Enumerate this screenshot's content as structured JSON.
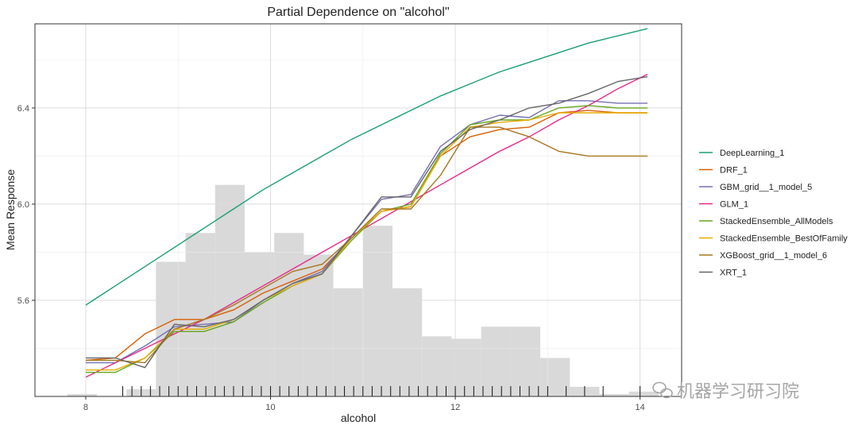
{
  "chart_data": {
    "type": "line",
    "title": "Partial Dependence on \"alcohol\"",
    "xlabel": "alcohol",
    "ylabel": "Mean Response",
    "xlim": [
      7.45,
      14.45
    ],
    "ylim": [
      5.2,
      6.75
    ],
    "x_ticks": [
      8,
      10,
      12,
      14
    ],
    "y_ticks": [
      5.6,
      6.0,
      6.4
    ],
    "x_tick_labels": [
      "8",
      "10",
      "12",
      "14"
    ],
    "y_tick_labels": [
      "5.6",
      "6.0",
      "6.4"
    ],
    "grid": true,
    "legend_position": "right",
    "x": [
      8.0,
      8.32,
      8.64,
      8.96,
      9.28,
      9.6,
      9.92,
      10.24,
      10.56,
      10.88,
      11.2,
      11.52,
      11.84,
      12.16,
      12.48,
      12.8,
      13.12,
      13.44,
      13.76,
      14.08
    ],
    "series": [
      {
        "name": "DeepLearning_1",
        "color": "#1b9e77",
        "values": [
          5.58,
          5.66,
          5.74,
          5.82,
          5.9,
          5.98,
          6.06,
          6.13,
          6.2,
          6.27,
          6.33,
          6.39,
          6.45,
          6.5,
          6.55,
          6.59,
          6.63,
          6.67,
          6.7,
          6.73
        ]
      },
      {
        "name": "DRF_1",
        "color": "#d95f02",
        "values": [
          5.35,
          5.36,
          5.46,
          5.52,
          5.52,
          5.56,
          5.63,
          5.68,
          5.73,
          5.86,
          5.97,
          5.99,
          6.2,
          6.28,
          6.31,
          6.32,
          6.38,
          6.39,
          6.38,
          6.38
        ]
      },
      {
        "name": "GBM_grid__1_model_5",
        "color": "#7570b3",
        "values": [
          5.34,
          5.34,
          5.41,
          5.49,
          5.5,
          5.51,
          5.6,
          5.67,
          5.72,
          5.87,
          6.02,
          6.04,
          6.24,
          6.33,
          6.37,
          6.36,
          6.43,
          6.43,
          6.42,
          6.42
        ]
      },
      {
        "name": "GLM_1",
        "color": "#e7298a",
        "values": [
          5.28,
          5.34,
          5.4,
          5.46,
          5.52,
          5.59,
          5.66,
          5.73,
          5.8,
          5.87,
          5.94,
          6.01,
          6.08,
          6.15,
          6.22,
          6.28,
          6.35,
          6.41,
          6.48,
          6.54
        ]
      },
      {
        "name": "StackedEnsemble_AllModels",
        "color": "#66a61e",
        "values": [
          5.3,
          5.3,
          5.36,
          5.47,
          5.47,
          5.51,
          5.59,
          5.66,
          5.71,
          5.85,
          5.97,
          6.0,
          6.21,
          6.33,
          6.35,
          6.35,
          6.4,
          6.41,
          6.4,
          6.4
        ]
      },
      {
        "name": "StackedEnsemble_BestOfFamily",
        "color": "#e6ab02",
        "values": [
          5.31,
          5.31,
          5.36,
          5.48,
          5.48,
          5.52,
          5.6,
          5.66,
          5.71,
          5.86,
          5.97,
          5.99,
          6.2,
          6.32,
          6.34,
          6.35,
          6.38,
          6.38,
          6.38,
          6.38
        ]
      },
      {
        "name": "XGBoost_grid__1_model_6",
        "color": "#a6761d",
        "values": [
          5.35,
          5.35,
          5.34,
          5.48,
          5.52,
          5.58,
          5.65,
          5.72,
          5.75,
          5.86,
          5.98,
          5.98,
          6.12,
          6.32,
          6.32,
          6.28,
          6.22,
          6.2,
          6.2,
          6.2
        ]
      },
      {
        "name": "XRT_1",
        "color": "#666666",
        "values": [
          5.36,
          5.36,
          5.32,
          5.5,
          5.49,
          5.52,
          5.6,
          5.67,
          5.71,
          5.87,
          6.03,
          6.03,
          6.22,
          6.31,
          6.35,
          6.4,
          6.42,
          6.46,
          6.51,
          6.53
        ]
      }
    ],
    "histogram": {
      "bin_starts": [
        7.8,
        8.12,
        8.44,
        8.76,
        9.08,
        9.4,
        9.72,
        10.04,
        10.36,
        10.68,
        11.0,
        11.32,
        11.64,
        11.96,
        12.28,
        12.6,
        12.92,
        13.24,
        13.56,
        13.88
      ],
      "bin_width": 0.32,
      "values": [
        5.21,
        5.2,
        5.23,
        5.76,
        5.88,
        6.08,
        5.8,
        5.88,
        5.79,
        5.65,
        5.91,
        5.65,
        5.45,
        5.44,
        5.49,
        5.49,
        5.36,
        5.24,
        5.21,
        5.22
      ]
    },
    "rug": [
      8.4,
      8.5,
      8.6,
      8.7,
      8.8,
      8.9,
      9.0,
      9.1,
      9.2,
      9.3,
      9.4,
      9.5,
      9.6,
      9.7,
      9.8,
      9.9,
      10.0,
      10.1,
      10.2,
      10.3,
      10.4,
      10.5,
      10.6,
      10.7,
      10.8,
      10.9,
      11.0,
      11.1,
      11.2,
      11.3,
      11.4,
      11.5,
      11.6,
      11.7,
      11.8,
      11.9,
      12.0,
      12.1,
      12.2,
      12.3,
      12.4,
      12.5,
      12.6,
      12.7,
      12.8,
      12.9,
      13.0,
      13.2,
      13.4,
      13.6,
      14.0
    ]
  },
  "watermark": "机器学习研习院"
}
